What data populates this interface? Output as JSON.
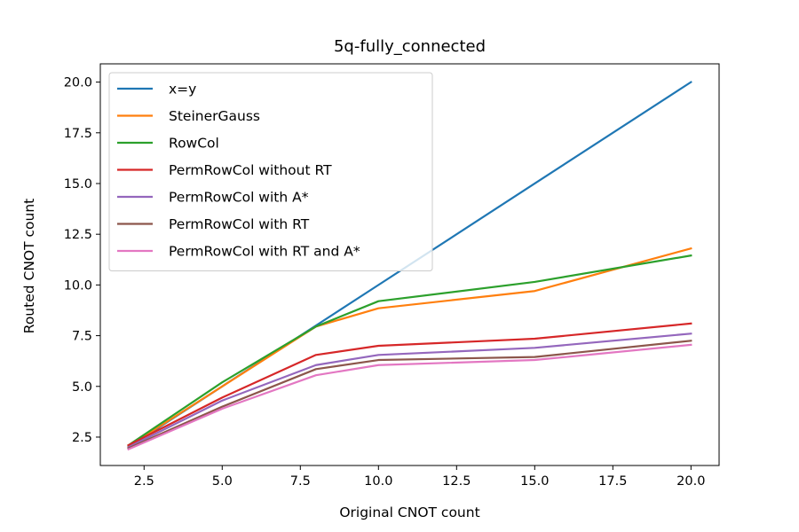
{
  "chart_data": {
    "type": "line",
    "title": "5q-fully_connected",
    "xlabel": "Original CNOT count",
    "ylabel": "Routed CNOT count",
    "xlim": [
      1.1,
      20.9
    ],
    "ylim": [
      1.1,
      20.9
    ],
    "xticks": [
      2.5,
      5.0,
      7.5,
      10.0,
      12.5,
      15.0,
      17.5,
      20.0
    ],
    "xtick_labels": [
      "2.5",
      "5.0",
      "7.5",
      "10.0",
      "12.5",
      "15.0",
      "17.5",
      "20.0"
    ],
    "yticks": [
      2.5,
      5.0,
      7.5,
      10.0,
      12.5,
      15.0,
      17.5,
      20.0
    ],
    "ytick_labels": [
      "2.5",
      "5.0",
      "7.5",
      "10.0",
      "12.5",
      "15.0",
      "17.5",
      "20.0"
    ],
    "grid": false,
    "legend_position": "upper-left",
    "x": [
      2,
      5,
      8,
      10,
      15,
      20
    ],
    "series": [
      {
        "name": "x=y",
        "color": "#1f77b4",
        "values": [
          2,
          5,
          8,
          10,
          15,
          20
        ]
      },
      {
        "name": "SteinerGauss",
        "color": "#ff7f0e",
        "values": [
          2.05,
          5.0,
          7.95,
          8.85,
          9.7,
          11.8
        ]
      },
      {
        "name": "RowCol",
        "color": "#2ca02c",
        "values": [
          2.1,
          5.2,
          7.95,
          9.2,
          10.15,
          11.45
        ]
      },
      {
        "name": "PermRowCol without RT",
        "color": "#d62728",
        "values": [
          2.1,
          4.45,
          6.55,
          7.0,
          7.35,
          8.1
        ]
      },
      {
        "name": "PermRowCol with A*",
        "color": "#9467bd",
        "values": [
          2.0,
          4.3,
          6.05,
          6.55,
          6.9,
          7.6
        ]
      },
      {
        "name": "PermRowCol with RT",
        "color": "#8c564b",
        "values": [
          1.95,
          4.0,
          5.85,
          6.3,
          6.45,
          7.25
        ]
      },
      {
        "name": "PermRowCol with RT and A*",
        "color": "#e377c2",
        "values": [
          1.9,
          3.9,
          5.55,
          6.05,
          6.3,
          7.05
        ]
      }
    ]
  }
}
